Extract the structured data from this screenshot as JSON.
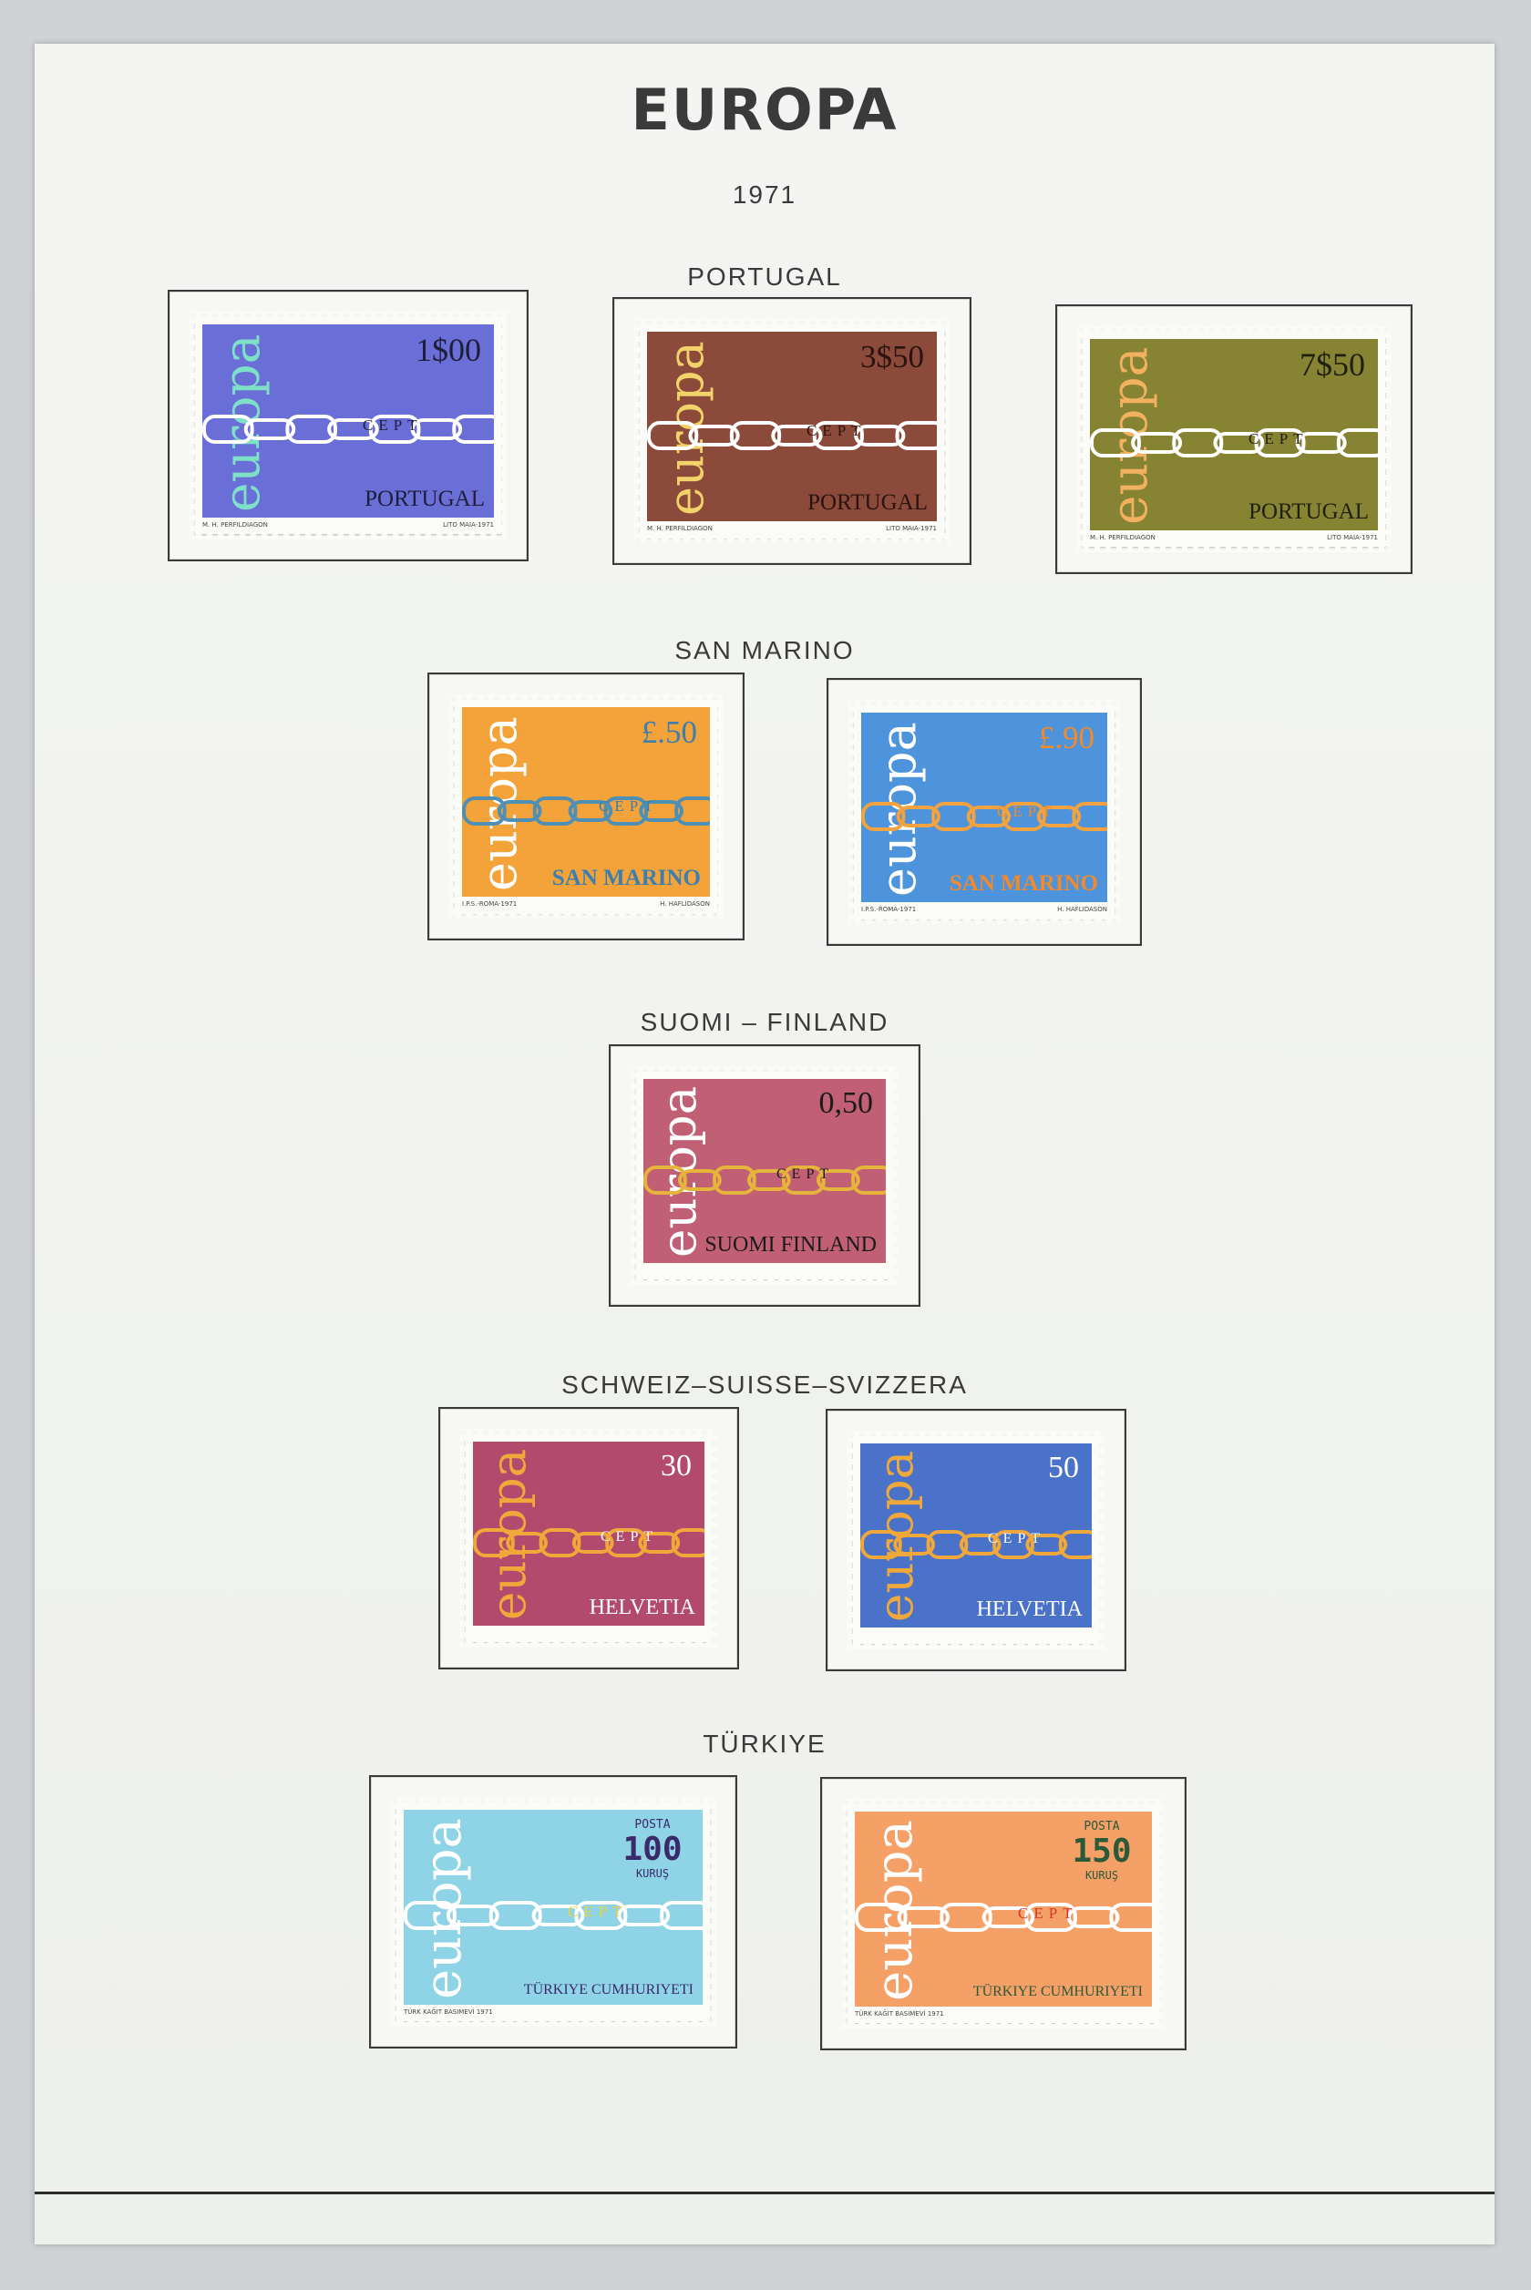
{
  "page": {
    "title": "EUROPA",
    "year": "1971"
  },
  "sections": [
    {
      "country": "PORTUGAL",
      "stamps": [
        {
          "value": "1$00",
          "name": "PORTUGAL",
          "cept": "CEPT",
          "color": "#6a6fd8",
          "word_color": "#7fe0c8",
          "chain_color": "#ffffff",
          "text_color": "#1e1e3a",
          "imprint_left": "M. H. PERFILDIAGON",
          "imprint_right": "LITO MAIA-1971"
        },
        {
          "value": "3$50",
          "name": "PORTUGAL",
          "cept": "CEPT",
          "color": "#8c4a3a",
          "word_color": "#f1d36a",
          "chain_color": "#ffffff",
          "text_color": "#2a1410",
          "imprint_left": "M. H. PERFILDIAGON",
          "imprint_right": "LITO MAIA-1971"
        },
        {
          "value": "7$50",
          "name": "PORTUGAL",
          "cept": "CEPT",
          "color": "#868432",
          "word_color": "#f2b160",
          "chain_color": "#ffffff",
          "text_color": "#202010",
          "imprint_left": "M. H. PERFILDIAGON",
          "imprint_right": "LITO MAIA-1971"
        }
      ]
    },
    {
      "country": "SAN MARINO",
      "stamps": [
        {
          "value": "£.50",
          "name": "SAN MARINO",
          "cept": "CEPT",
          "color": "#f4a23a",
          "word_color": "#ffffff",
          "chain_color": "#4e8fb5",
          "text_color": "#3a7fb0",
          "imprint_left": "I.P.S.-ROMA-1971",
          "imprint_right": "H. HAFLIDASON"
        },
        {
          "value": "£.90",
          "name": "SAN MARINO",
          "cept": "CEPT",
          "color": "#4e94dc",
          "word_color": "#ffffff",
          "chain_color": "#f2a23e",
          "text_color": "#f08a2a",
          "imprint_left": "I.P.S.-ROMA-1971",
          "imprint_right": "H. HAFLIDASON"
        }
      ]
    },
    {
      "country": "SUOMI – FINLAND",
      "stamps": [
        {
          "value": "0,50",
          "name": "SUOMI FINLAND",
          "cept": "CEPT",
          "color": "#c15f74",
          "word_color": "#ffffff",
          "chain_color": "#e6b43a",
          "text_color": "#1a1a1a",
          "imprint_left": "",
          "imprint_right": ""
        }
      ]
    },
    {
      "country": "SCHWEIZ–SUISSE–SVIZZERA",
      "stamps": [
        {
          "value": "30",
          "name": "HELVETIA",
          "cept": "CEPT",
          "color": "#b24a6e",
          "word_color": "#f0a83a",
          "chain_color": "#f0a83a",
          "text_color": "#ffffff",
          "imprint_left": "",
          "imprint_right": ""
        },
        {
          "value": "50",
          "name": "HELVETIA",
          "cept": "CEPT",
          "color": "#4a72c8",
          "word_color": "#f0a83a",
          "chain_color": "#f0a83a",
          "text_color": "#ffffff",
          "imprint_left": "",
          "imprint_right": ""
        }
      ]
    },
    {
      "country": "TÜRKIYE",
      "stamps": [
        {
          "posta": "POSTA",
          "value": "100",
          "kurus": "KURUŞ",
          "name": "TÜRKIYE CUMHURIYETI",
          "cept": "CEPT",
          "color": "#8fd4e6",
          "word_color": "#ffffff",
          "chain_color": "#ffffff",
          "text_color": "#3a2a6a",
          "cept_color": "#f0d23a",
          "imprint_left": "TÜRK KAĞIT BASIMEVİ 1971",
          "imprint_right": ""
        },
        {
          "posta": "POSTA",
          "value": "150",
          "kurus": "KURUŞ",
          "name": "TÜRKIYE CUMHURIYETI",
          "cept": "CEPT",
          "color": "#f4a066",
          "word_color": "#ffffff",
          "chain_color": "#ffffff",
          "text_color": "#2a5a3a",
          "cept_color": "#d23a2a",
          "imprint_left": "TÜRK KAĞIT BASIMEVİ 1971",
          "imprint_right": ""
        }
      ]
    }
  ]
}
